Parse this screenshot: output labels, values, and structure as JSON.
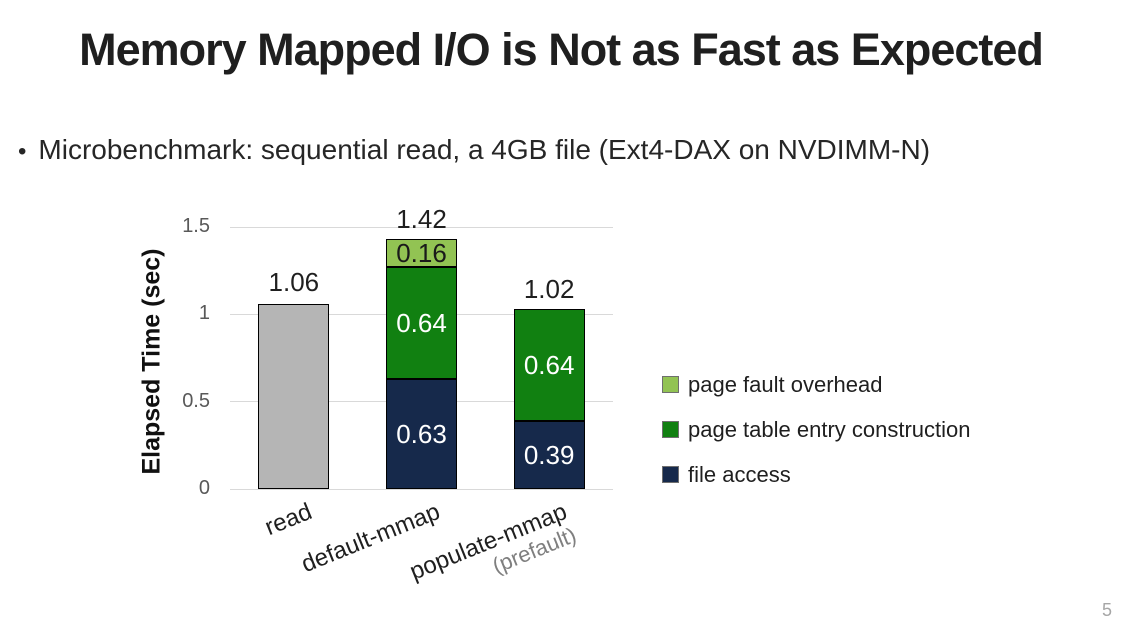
{
  "slide": {
    "title": "Memory Mapped I/O is Not as Fast as Expected",
    "bullet_glyph": "•",
    "bullet": "Microbenchmark: sequential read, a 4GB file (Ext4-DAX on NVDIMM-N)",
    "page_number": "5"
  },
  "chart_data": {
    "type": "bar",
    "stacked": true,
    "title": "",
    "xlabel": "",
    "ylabel": "Elapsed Time (sec)",
    "ylim": [
      0,
      1.5
    ],
    "grid": true,
    "legend_position": "right",
    "gridline_color": "#d9d9d9",
    "yticks": [
      {
        "value": 0,
        "label": "0"
      },
      {
        "value": 0.5,
        "label": "0.5"
      },
      {
        "value": 1,
        "label": "1"
      },
      {
        "value": 1.5,
        "label": "1.5"
      }
    ],
    "categories": [
      "read",
      "default-mmap",
      "populate-mmap (prefault)"
    ],
    "bars": [
      {
        "category": "read",
        "sublabel": "",
        "total": 1.06,
        "total_label": "1.06",
        "segments": [
          {
            "series": "read",
            "value": 1.06,
            "color": "#b5b5b5",
            "label": "",
            "label_color": "#ffffff"
          }
        ]
      },
      {
        "category": "default-mmap",
        "sublabel": "",
        "total": 1.42,
        "total_label": "1.42",
        "segments": [
          {
            "series": "file access",
            "value": 0.63,
            "color": "#16294b",
            "label": "0.63",
            "label_color": "#ffffff"
          },
          {
            "series": "page table entry construction",
            "value": 0.64,
            "color": "#118011",
            "label": "0.64",
            "label_color": "#ffffff"
          },
          {
            "series": "page fault overhead",
            "value": 0.16,
            "color": "#92c353",
            "label": "0.16",
            "label_color": "#1a1a1a"
          }
        ]
      },
      {
        "category": "populate-mmap",
        "sublabel": "(prefault)",
        "total": 1.02,
        "total_label": "1.02",
        "segments": [
          {
            "series": "file access",
            "value": 0.39,
            "color": "#16294b",
            "label": "0.39",
            "label_color": "#ffffff"
          },
          {
            "series": "page table entry construction",
            "value": 0.64,
            "color": "#118011",
            "label": "0.64",
            "label_color": "#ffffff"
          }
        ]
      }
    ],
    "legend": [
      {
        "label": "page fault overhead",
        "color": "#92c353"
      },
      {
        "label": "page table entry construction",
        "color": "#118011"
      },
      {
        "label": "file access",
        "color": "#16294b"
      }
    ]
  }
}
